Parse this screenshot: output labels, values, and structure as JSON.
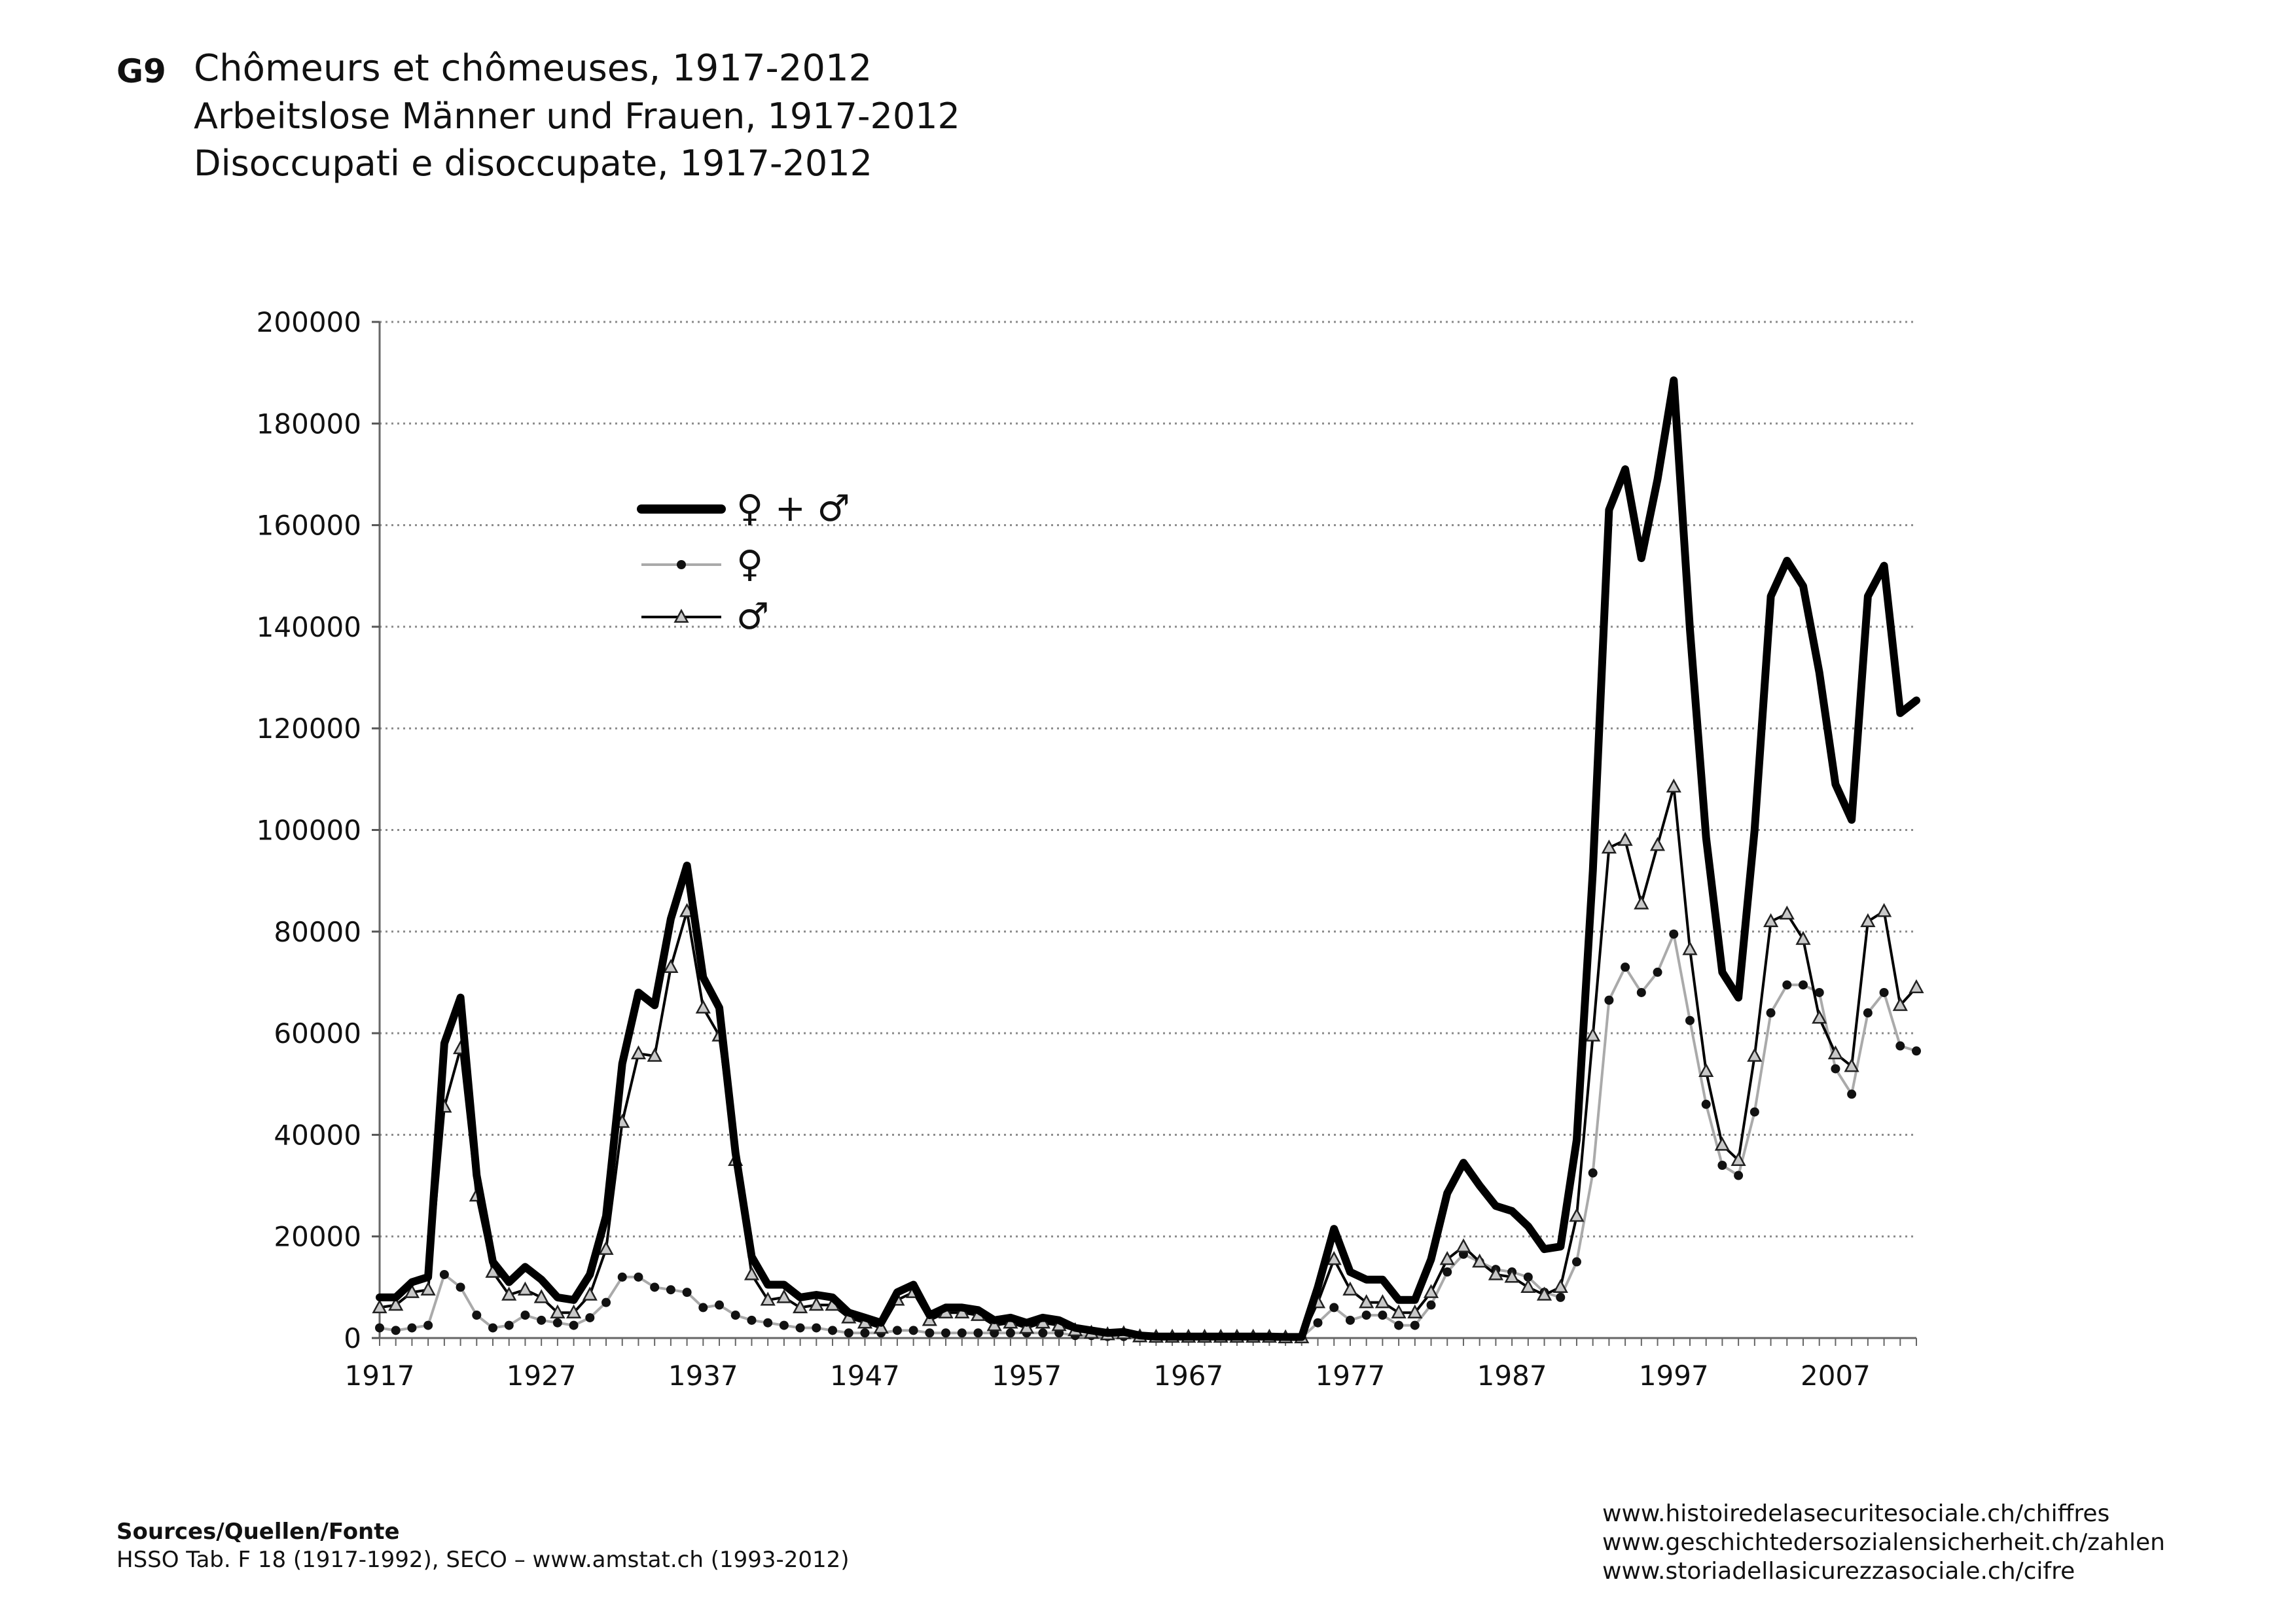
{
  "header": {
    "code": "G9",
    "title_fr": "Chômeurs et chômeuses, 1917-2012",
    "title_de": "Arbeitslose Männer und Frauen, 1917-2012",
    "title_it": "Disoccupati e disoccupate, 1917-2012"
  },
  "footer": {
    "sources_label": "Sources/Quellen/Fonte",
    "sources_text": "HSSO Tab. F 18 (1917-1992), SECO – www.amstat.ch (1993-2012)",
    "urls": [
      "www.histoiredelasecuritesociale.ch/chiffres",
      "www.geschichtedersozialensicherheit.ch/zahlen",
      "www.storiadellasicurezzasociale.ch/cifre"
    ]
  },
  "chart_data": {
    "type": "line",
    "xlim": [
      1917,
      2012
    ],
    "ylim": [
      0,
      200000
    ],
    "x_ticks": [
      "1917",
      "1927",
      "1937",
      "1947",
      "1957",
      "1967",
      "1977",
      "1987",
      "1997",
      "2007"
    ],
    "y_ticks": [
      "0",
      "20000",
      "40000",
      "60000",
      "80000",
      "100000",
      "120000",
      "140000",
      "160000",
      "180000",
      "200000"
    ],
    "grid": "horizontal dotted",
    "legend_position": "upper-left",
    "x": [
      1917,
      1918,
      1919,
      1920,
      1921,
      1922,
      1923,
      1924,
      1925,
      1926,
      1927,
      1928,
      1929,
      1930,
      1931,
      1932,
      1933,
      1934,
      1935,
      1936,
      1937,
      1938,
      1939,
      1940,
      1941,
      1942,
      1943,
      1944,
      1945,
      1946,
      1947,
      1948,
      1949,
      1950,
      1951,
      1952,
      1953,
      1954,
      1955,
      1956,
      1957,
      1958,
      1959,
      1960,
      1961,
      1962,
      1963,
      1964,
      1965,
      1966,
      1967,
      1968,
      1969,
      1970,
      1971,
      1972,
      1973,
      1974,
      1975,
      1976,
      1977,
      1978,
      1979,
      1980,
      1981,
      1982,
      1983,
      1984,
      1985,
      1986,
      1987,
      1988,
      1989,
      1990,
      1991,
      1992,
      1993,
      1994,
      1995,
      1996,
      1997,
      1998,
      1999,
      2000,
      2001,
      2002,
      2003,
      2004,
      2005,
      2006,
      2007,
      2008,
      2009,
      2010,
      2011,
      2012
    ],
    "series": [
      {
        "name": "♀ + ♂",
        "style": "thick",
        "color": "#000000",
        "values": [
          8000,
          8000,
          11000,
          12000,
          58000,
          67000,
          32000,
          15000,
          11000,
          14000,
          11500,
          8000,
          7500,
          12500,
          24000,
          54000,
          68000,
          65500,
          82500,
          93000,
          71000,
          65000,
          36500,
          16000,
          10500,
          10500,
          8000,
          8500,
          8000,
          5000,
          4000,
          3000,
          9000,
          10500,
          4500,
          6000,
          6000,
          5500,
          3500,
          4000,
          3000,
          4000,
          3500,
          2000,
          1500,
          1000,
          1200,
          500,
          300,
          300,
          300,
          300,
          300,
          300,
          300,
          300,
          200,
          200,
          10000,
          21500,
          13000,
          11500,
          11500,
          7500,
          7500,
          15500,
          28500,
          34500,
          30000,
          26000,
          25000,
          22000,
          17500,
          18000,
          39000,
          92000,
          163000,
          171000,
          153500,
          169000,
          188500,
          139500,
          98500,
          72000,
          67000,
          100000,
          146000,
          153000,
          148000,
          131000,
          109000,
          102000,
          146000,
          152000,
          123000,
          125500
        ]
      },
      {
        "name": "♀",
        "style": "dots",
        "color": "#aaaaaa",
        "values": [
          2000,
          1500,
          2000,
          2500,
          12500,
          10000,
          4500,
          2000,
          2500,
          4500,
          3500,
          3000,
          2500,
          4000,
          7000,
          12000,
          12000,
          10000,
          9500,
          9000,
          6000,
          6500,
          4500,
          3500,
          3000,
          2500,
          2000,
          2000,
          1500,
          1000,
          1000,
          1000,
          1500,
          1500,
          1000,
          1000,
          1000,
          1000,
          1000,
          1000,
          1000,
          1000,
          1000,
          500,
          500,
          300,
          300,
          200,
          100,
          100,
          100,
          100,
          100,
          100,
          100,
          100,
          100,
          100,
          3000,
          6000,
          3500,
          4500,
          4500,
          2500,
          2500,
          6500,
          13000,
          16500,
          15000,
          13500,
          13000,
          12000,
          9000,
          8000,
          15000,
          32500,
          66500,
          73000,
          68000,
          72000,
          79500,
          62500,
          46000,
          34000,
          32000,
          44500,
          64000,
          69500,
          69500,
          68000,
          53000,
          48000,
          64000,
          68000,
          57500,
          56500
        ]
      },
      {
        "name": "♂",
        "style": "triangles",
        "color": "#000000",
        "values": [
          6000,
          6500,
          9000,
          9500,
          45500,
          57000,
          28000,
          13000,
          8500,
          9500,
          8000,
          5000,
          5000,
          8500,
          17500,
          42500,
          56000,
          55500,
          73000,
          84000,
          65000,
          59500,
          35000,
          12500,
          7500,
          8000,
          6000,
          6500,
          6500,
          4000,
          3000,
          2000,
          7500,
          9000,
          3500,
          5000,
          5000,
          4500,
          2500,
          3000,
          2000,
          3000,
          2500,
          1500,
          1000,
          700,
          900,
          300,
          200,
          200,
          200,
          200,
          200,
          200,
          200,
          200,
          100,
          100,
          7000,
          15500,
          9500,
          7000,
          7000,
          5000,
          5000,
          9000,
          15500,
          18000,
          15000,
          12500,
          12000,
          10000,
          8500,
          10000,
          24000,
          59500,
          96500,
          98000,
          85500,
          97000,
          108500,
          76500,
          52500,
          38000,
          35000,
          55500,
          82000,
          83500,
          78500,
          63000,
          56000,
          53500,
          82000,
          84000,
          65500,
          69000
        ]
      }
    ]
  }
}
